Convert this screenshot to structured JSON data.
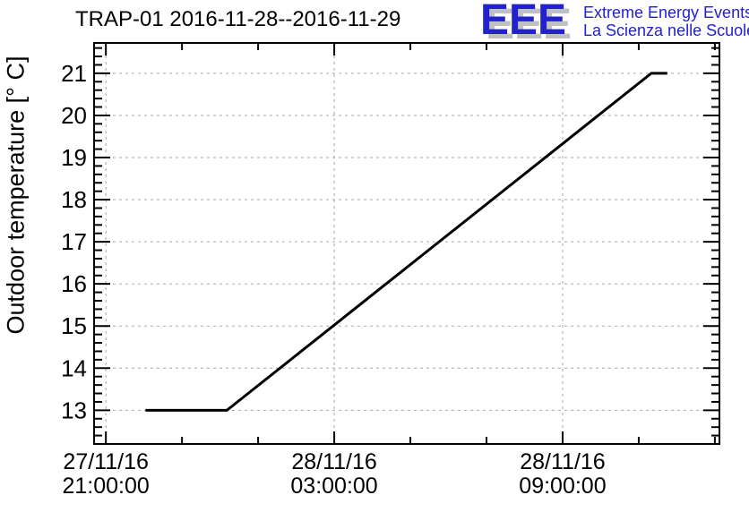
{
  "header": {
    "title": "TRAP-01 2016-11-28--2016-11-29",
    "logo": {
      "acronym": "EEE",
      "line1": "Extreme Energy Events",
      "line2": "La Scienza nelle Scuole",
      "text_color": "#2222cc",
      "shadow_color": "#c0c0c0"
    }
  },
  "chart_data": {
    "type": "line",
    "title": "TRAP-01 2016-11-28--2016-11-29",
    "xlabel": "",
    "ylabel": "Outdoor temperature [° C]",
    "x_unit": "hours since 27/11/16 21:00:00",
    "xlim_hours": [
      -0.31,
      16.12
    ],
    "ylim": [
      12.2,
      21.72
    ],
    "grid": true,
    "legend_position": "none",
    "y_major_ticks": [
      13,
      14,
      15,
      16,
      17,
      18,
      19,
      20,
      21
    ],
    "y_minor_step": 0.2,
    "x_major_ticks": [
      {
        "hours": 0,
        "date": "27/11/16",
        "time": "21:00:00"
      },
      {
        "hours": 6,
        "date": "28/11/16",
        "time": "03:00:00"
      },
      {
        "hours": 12,
        "date": "28/11/16",
        "time": "09:00:00"
      }
    ],
    "x_minor_ticks_hours": [
      2,
      4,
      8,
      10,
      14,
      16
    ],
    "series": [
      {
        "name": "outdoor-temperature",
        "color": "#000000",
        "line_width": 3,
        "points": [
          {
            "time": "27/11/16 22:00",
            "hours": 1.04,
            "temp_c": 13
          },
          {
            "time": "28/11/16 00:10",
            "hours": 3.18,
            "temp_c": 13
          },
          {
            "time": "28/11/16 11:20",
            "hours": 14.33,
            "temp_c": 21
          },
          {
            "time": "28/11/16 11:45",
            "hours": 14.75,
            "temp_c": 21
          }
        ]
      }
    ],
    "colors": {
      "grid": "#a6a6a6",
      "axis": "#000000",
      "background": "#ffffff"
    }
  }
}
